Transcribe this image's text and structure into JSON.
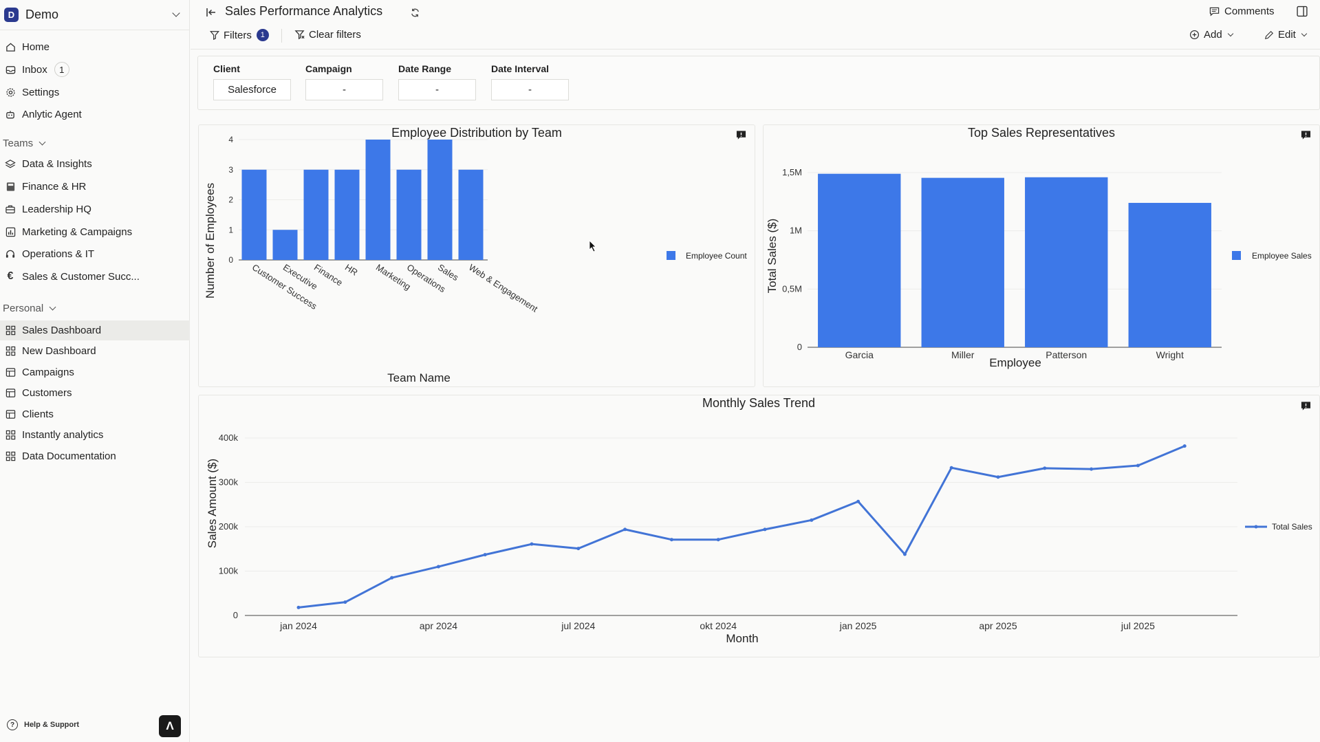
{
  "workspace": {
    "badge": "D",
    "name": "Demo"
  },
  "nav": [
    {
      "label": "Home",
      "icon": "home-icon"
    },
    {
      "label": "Inbox",
      "icon": "inbox-icon",
      "badge": "1"
    },
    {
      "label": "Settings",
      "icon": "gear-icon"
    },
    {
      "label": "Anlytic Agent",
      "icon": "robot-icon"
    }
  ],
  "teams": {
    "title": "Teams",
    "items": [
      {
        "label": "Data & Insights",
        "icon": "layers-icon"
      },
      {
        "label": "Finance & HR",
        "icon": "calculator-icon"
      },
      {
        "label": "Leadership HQ",
        "icon": "briefcase-icon"
      },
      {
        "label": "Marketing & Campaigns",
        "icon": "chart-icon"
      },
      {
        "label": "Operations & IT",
        "icon": "headset-icon"
      },
      {
        "label": "Sales & Customer Succ...",
        "icon": "euro-icon"
      }
    ]
  },
  "personal": {
    "title": "Personal",
    "items": [
      {
        "label": "Sales Dashboard",
        "icon": "dashboard-icon"
      },
      {
        "label": "New Dashboard",
        "icon": "dashboard-icon"
      },
      {
        "label": "Campaigns",
        "icon": "table-icon"
      },
      {
        "label": "Customers",
        "icon": "table-icon"
      },
      {
        "label": "Clients",
        "icon": "table-icon"
      },
      {
        "label": "Instantly analytics",
        "icon": "dashboard-icon"
      },
      {
        "label": "Data Documentation",
        "icon": "dashboard-icon"
      }
    ]
  },
  "footer": {
    "help": "Help & Support",
    "logo": "Λ"
  },
  "header": {
    "title": "Sales Performance Analytics",
    "filters_label": "Filters",
    "filters_count": "1",
    "clear_filters": "Clear filters",
    "comments": "Comments",
    "add": "Add",
    "edit": "Edit"
  },
  "filter_panel": [
    {
      "label": "Client",
      "value": "Salesforce"
    },
    {
      "label": "Campaign",
      "value": "-"
    },
    {
      "label": "Date Range",
      "value": "-"
    },
    {
      "label": "Date Interval",
      "value": "-"
    }
  ],
  "colors": {
    "bar": "#3d78e8",
    "line": "#4274d6",
    "brand": "#2b3a8f"
  },
  "chart_data": [
    {
      "type": "bar",
      "title": "Employee Distribution by Team",
      "xlabel": "Team Name",
      "ylabel": "Number of Employees",
      "categories": [
        "Customer Success",
        "Executive",
        "Finance",
        "HR",
        "Marketing",
        "Operations",
        "Sales",
        "Web & Engagement"
      ],
      "values": [
        3,
        1,
        3,
        3,
        4,
        3,
        4,
        3
      ],
      "ylim": [
        0,
        4
      ],
      "yticks": [
        "0",
        "1",
        "2",
        "3",
        "4"
      ],
      "legend": "Employee Count"
    },
    {
      "type": "bar",
      "title": "Top Sales Representatives",
      "xlabel": "Employee",
      "ylabel": "Total Sales ($)",
      "categories": [
        "Garcia",
        "Miller",
        "Patterson",
        "Wright"
      ],
      "values": [
        1490000,
        1455000,
        1460000,
        1240000
      ],
      "ylim": [
        0,
        1500000
      ],
      "yticks": [
        "0",
        "0,5M",
        "1M",
        "1,5M"
      ],
      "legend": "Employee Sales"
    },
    {
      "type": "line",
      "title": "Monthly Sales Trend",
      "xlabel": "Month",
      "ylabel": "Sales Amount ($)",
      "x": [
        "2024-01",
        "2024-02",
        "2024-03",
        "2024-04",
        "2024-05",
        "2024-06",
        "2024-07",
        "2024-08",
        "2024-09",
        "2024-10",
        "2024-11",
        "2024-12",
        "2025-01",
        "2025-02",
        "2025-03",
        "2025-04",
        "2025-05",
        "2025-06",
        "2025-07",
        "2025-08"
      ],
      "values": [
        18000,
        30000,
        85000,
        110000,
        137000,
        161000,
        151000,
        194000,
        171000,
        171000,
        194000,
        215000,
        257000,
        138000,
        333000,
        312000,
        332000,
        330000,
        338000,
        382000
      ],
      "xticks": [
        "jan 2024",
        "apr 2024",
        "jul 2024",
        "okt 2024",
        "jan 2025",
        "apr 2025",
        "jul 2025"
      ],
      "yticks": [
        "0",
        "100k",
        "200k",
        "300k",
        "400k"
      ],
      "ylim": [
        0,
        400000
      ],
      "legend": "Total Sales"
    }
  ]
}
